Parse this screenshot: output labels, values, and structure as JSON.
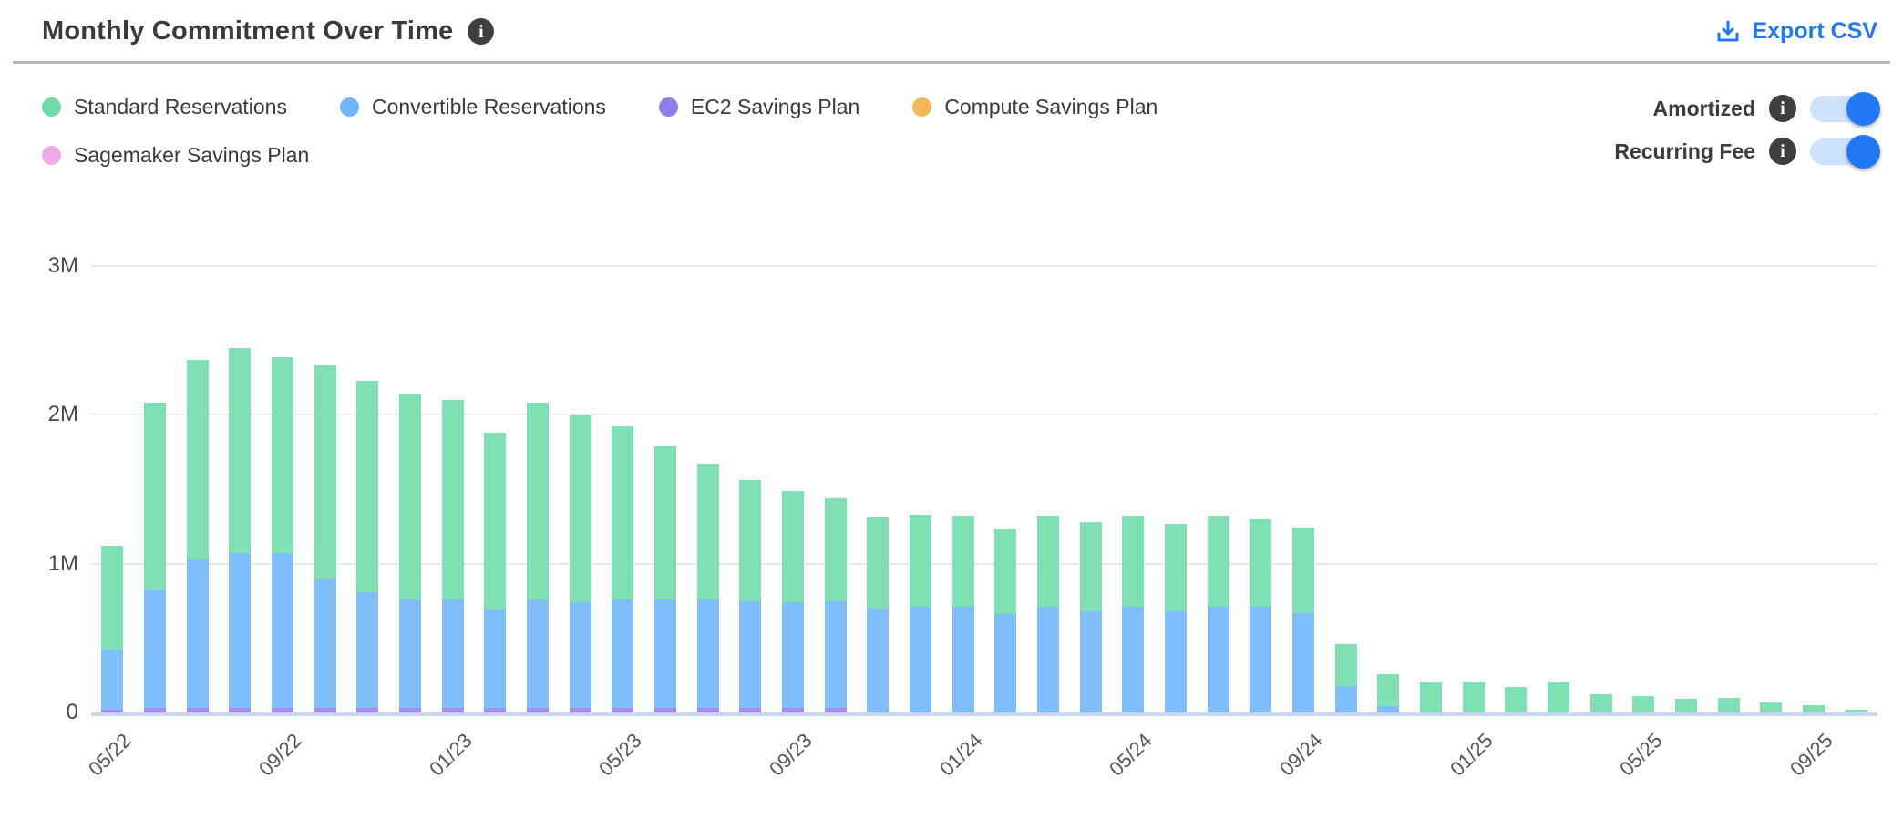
{
  "colors": {
    "accent": "#2277f2",
    "track": "#cfe2fb",
    "grid": "#e9e9e9",
    "baseline": "#ccd3ee"
  },
  "icons": {
    "info_glyph": "i",
    "download_icon": "download-tray-arrow"
  },
  "header": {
    "title": "Monthly Commitment Over Time",
    "export_label": "Export CSV"
  },
  "legend": {
    "items": [
      {
        "label": "Standard Reservations",
        "color": "#74d9a9"
      },
      {
        "label": "Convertible Reservations",
        "color": "#70b7f9"
      },
      {
        "label": "EC2 Savings Plan",
        "color": "#8f7ce8"
      },
      {
        "label": "Compute Savings Plan",
        "color": "#f3b75e"
      },
      {
        "label": "Sagemaker Savings Plan",
        "color": "#efa9e5"
      }
    ]
  },
  "toggles": [
    {
      "label": "Amortized",
      "state": "on"
    },
    {
      "label": "Recurring Fee",
      "state": "on"
    }
  ],
  "chart_data": {
    "type": "bar",
    "stacked": true,
    "title": "Monthly Commitment Over Time",
    "xlabel": "",
    "ylabel": "",
    "unit": "USD (millions)",
    "ylim": [
      0,
      3
    ],
    "grid": true,
    "legend_position": "top-left",
    "x_tick_every": 4,
    "yticks": [
      {
        "label": "0",
        "value": 0
      },
      {
        "label": "1M",
        "value": 1
      },
      {
        "label": "2M",
        "value": 2
      },
      {
        "label": "3M",
        "value": 3
      }
    ],
    "x": [
      "05/22",
      "06/22",
      "07/22",
      "08/22",
      "09/22",
      "10/22",
      "11/22",
      "12/22",
      "01/23",
      "02/23",
      "03/23",
      "04/23",
      "05/23",
      "06/23",
      "07/23",
      "08/23",
      "09/23",
      "10/23",
      "11/23",
      "12/23",
      "01/24",
      "02/24",
      "03/24",
      "04/24",
      "05/24",
      "06/24",
      "07/24",
      "08/24",
      "09/24",
      "10/24",
      "11/24",
      "12/24",
      "01/25",
      "02/25",
      "03/25",
      "04/25",
      "05/25",
      "06/25",
      "07/25",
      "08/25",
      "09/25",
      "10/25"
    ],
    "series": [
      {
        "name": "EC2 Savings Plan",
        "color": "#a78df1",
        "values": [
          0.02,
          0.03,
          0.03,
          0.03,
          0.03,
          0.03,
          0.03,
          0.03,
          0.03,
          0.03,
          0.03,
          0.03,
          0.03,
          0.03,
          0.03,
          0.03,
          0.03,
          0.03,
          0,
          0,
          0,
          0,
          0,
          0,
          0,
          0,
          0,
          0,
          0,
          0,
          0,
          0,
          0,
          0,
          0,
          0,
          0,
          0,
          0,
          0,
          0,
          0
        ]
      },
      {
        "name": "Convertible Reservations",
        "color": "#7fbdfb",
        "values": [
          0.4,
          0.79,
          1.0,
          1.04,
          1.04,
          0.87,
          0.78,
          0.73,
          0.73,
          0.66,
          0.73,
          0.71,
          0.73,
          0.73,
          0.73,
          0.72,
          0.71,
          0.72,
          0.7,
          0.71,
          0.71,
          0.66,
          0.71,
          0.68,
          0.71,
          0.68,
          0.71,
          0.71,
          0.67,
          0.18,
          0.04,
          0,
          0,
          0,
          0,
          0,
          0,
          0,
          0,
          0,
          0,
          0
        ]
      },
      {
        "name": "Standard Reservations",
        "color": "#7fe0b4",
        "values": [
          0.7,
          1.26,
          1.34,
          1.38,
          1.32,
          1.43,
          1.42,
          1.38,
          1.34,
          1.19,
          1.32,
          1.26,
          1.16,
          1.03,
          0.91,
          0.81,
          0.75,
          0.69,
          0.61,
          0.62,
          0.61,
          0.57,
          0.61,
          0.6,
          0.61,
          0.59,
          0.61,
          0.59,
          0.57,
          0.28,
          0.22,
          0.2,
          0.2,
          0.17,
          0.2,
          0.12,
          0.11,
          0.09,
          0.1,
          0.07,
          0.05,
          0.02
        ]
      },
      {
        "name": "Compute Savings Plan",
        "color": "#f3b75e",
        "values": [
          0,
          0,
          0,
          0,
          0,
          0,
          0,
          0,
          0,
          0,
          0,
          0,
          0,
          0,
          0,
          0,
          0,
          0,
          0,
          0,
          0,
          0,
          0,
          0,
          0,
          0,
          0,
          0,
          0,
          0,
          0,
          0,
          0,
          0,
          0,
          0,
          0,
          0,
          0,
          0,
          0,
          0
        ]
      },
      {
        "name": "Sagemaker Savings Plan",
        "color": "#efa9e5",
        "values": [
          0,
          0,
          0,
          0,
          0,
          0,
          0,
          0,
          0,
          0,
          0,
          0,
          0,
          0,
          0,
          0,
          0,
          0,
          0,
          0,
          0,
          0,
          0,
          0,
          0,
          0,
          0,
          0,
          0,
          0,
          0,
          0,
          0,
          0,
          0,
          0,
          0,
          0,
          0,
          0,
          0,
          0
        ]
      }
    ]
  }
}
